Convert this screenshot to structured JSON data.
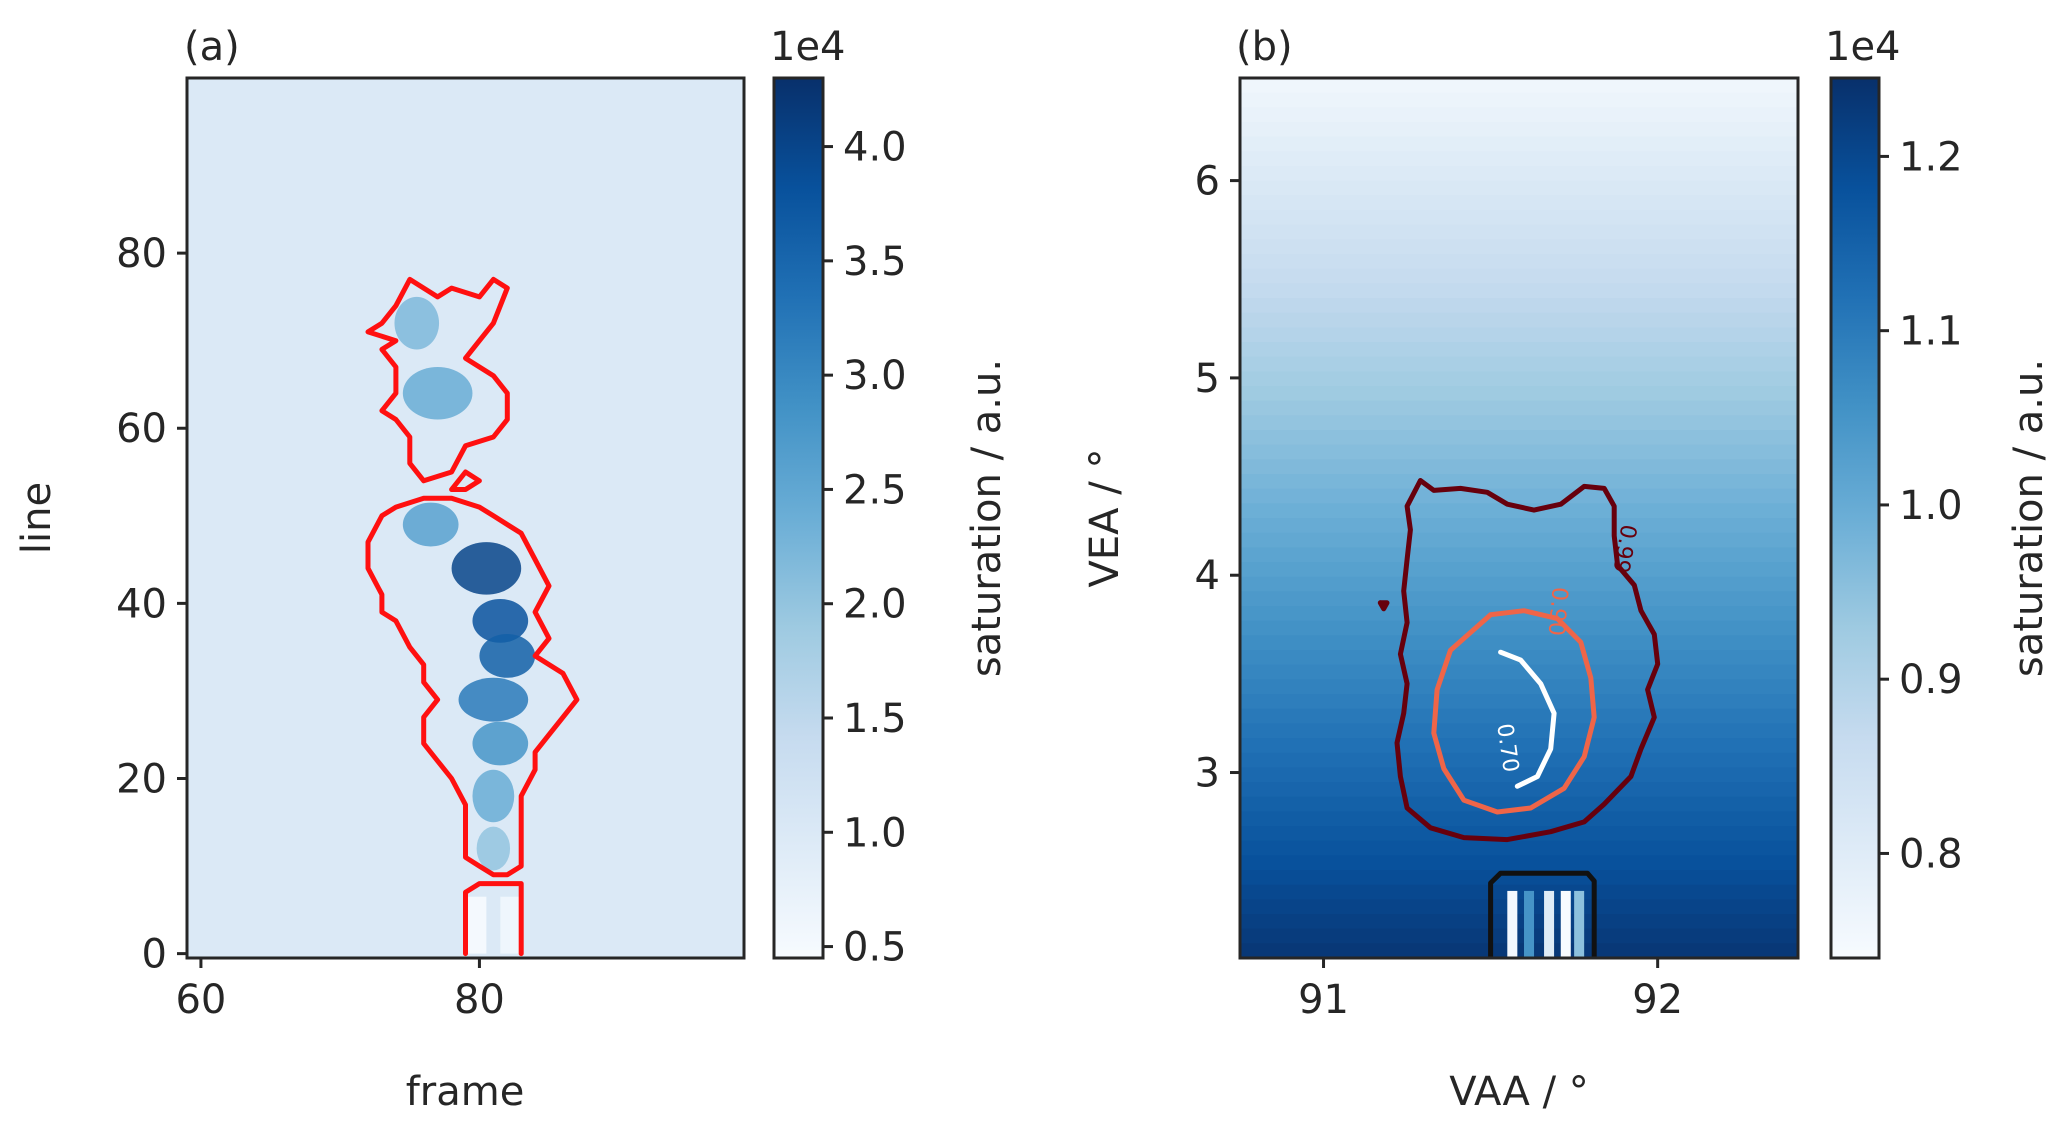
{
  "chart_data": [
    {
      "panel": "(a)",
      "type": "heatmap",
      "xlabel": "frame",
      "ylabel": "line",
      "xlim": [
        59,
        99
      ],
      "ylim": [
        -0.5,
        100
      ],
      "xticks": [
        60,
        80
      ],
      "yticks": [
        0,
        20,
        40,
        60,
        80
      ],
      "colormap": "Blues",
      "background_value": 10000,
      "colorbar": {
        "label": "saturation / a.u.",
        "exponent": "1e4",
        "range": [
          0.45,
          4.3
        ],
        "ticks": [
          0.5,
          1.0,
          1.5,
          2.0,
          2.5,
          3.0,
          3.5,
          4.0
        ],
        "tick_labels": [
          "0.5",
          "1.0",
          "1.5",
          "2.0",
          "2.5",
          "3.0",
          "3.5",
          "4.0"
        ]
      },
      "contours": [
        {
          "color": "#ff1010",
          "points": [
            [
              75,
              77
            ],
            [
              77,
              75
            ],
            [
              78,
              76
            ],
            [
              80,
              75
            ],
            [
              81,
              77
            ],
            [
              82,
              76
            ],
            [
              81,
              72
            ],
            [
              80,
              70
            ],
            [
              79,
              68
            ],
            [
              81,
              66
            ],
            [
              82,
              64
            ],
            [
              82,
              61
            ],
            [
              81,
              59
            ],
            [
              79,
              58
            ],
            [
              78,
              55
            ],
            [
              76,
              54
            ],
            [
              75,
              56
            ],
            [
              75,
              59
            ],
            [
              74,
              61
            ],
            [
              73,
              62
            ],
            [
              74,
              64
            ],
            [
              74,
              67
            ],
            [
              73,
              69
            ],
            [
              74,
              70
            ],
            [
              72,
              71
            ],
            [
              73,
              72
            ],
            [
              74,
              74
            ],
            [
              75,
              77
            ]
          ]
        },
        {
          "color": "#ff1010",
          "points": [
            [
              78,
              53
            ],
            [
              79,
              55
            ],
            [
              80,
              54
            ],
            [
              79,
              53
            ],
            [
              78,
              53
            ]
          ]
        },
        {
          "color": "#ff1010",
          "points": [
            [
              76,
              52
            ],
            [
              78,
              52
            ],
            [
              80,
              51
            ],
            [
              81,
              50
            ],
            [
              83,
              48
            ],
            [
              84,
              45
            ],
            [
              85,
              42
            ],
            [
              84,
              39
            ],
            [
              85,
              36
            ],
            [
              84,
              34
            ],
            [
              86,
              32
            ],
            [
              87,
              29
            ],
            [
              86,
              27
            ],
            [
              85,
              25
            ],
            [
              84,
              23
            ],
            [
              84,
              21
            ],
            [
              83,
              18
            ],
            [
              83,
              14
            ],
            [
              83,
              10
            ],
            [
              82,
              9
            ],
            [
              81,
              9
            ],
            [
              80,
              10
            ],
            [
              79,
              11
            ],
            [
              79,
              13
            ],
            [
              79,
              17
            ],
            [
              78,
              20
            ],
            [
              77,
              22
            ],
            [
              76,
              24
            ],
            [
              76,
              27
            ],
            [
              77,
              29
            ],
            [
              76,
              31
            ],
            [
              76,
              33
            ],
            [
              75,
              35
            ],
            [
              74,
              38
            ],
            [
              73,
              39
            ],
            [
              73,
              41
            ],
            [
              72,
              44
            ],
            [
              72,
              47
            ],
            [
              73,
              50
            ],
            [
              74,
              51
            ],
            [
              76,
              52
            ]
          ]
        },
        {
          "color": "#ff1010",
          "points": [
            [
              79,
              0
            ],
            [
              79,
              7
            ],
            [
              80,
              8
            ],
            [
              83,
              8
            ],
            [
              83,
              4
            ],
            [
              83,
              0
            ]
          ]
        }
      ],
      "blobs": [
        {
          "x": 75.5,
          "y": 72,
          "rx": 1.6,
          "ry": 3,
          "value": 22000
        },
        {
          "x": 77,
          "y": 64,
          "rx": 2.5,
          "ry": 3,
          "value": 24000
        },
        {
          "x": 76.5,
          "y": 49,
          "rx": 2,
          "ry": 2.5,
          "value": 26000
        },
        {
          "x": 80.5,
          "y": 44,
          "rx": 2.5,
          "ry": 3,
          "value": 40000
        },
        {
          "x": 81.5,
          "y": 38,
          "rx": 2,
          "ry": 2.5,
          "value": 38000
        },
        {
          "x": 82,
          "y": 34,
          "rx": 2,
          "ry": 2.5,
          "value": 36000
        },
        {
          "x": 81,
          "y": 29,
          "rx": 2.5,
          "ry": 2.5,
          "value": 32000
        },
        {
          "x": 81.5,
          "y": 24,
          "rx": 2,
          "ry": 2.5,
          "value": 28000
        },
        {
          "x": 81,
          "y": 18,
          "rx": 1.5,
          "ry": 3,
          "value": 24000
        },
        {
          "x": 81,
          "y": 12,
          "rx": 1.2,
          "ry": 2.5,
          "value": 20000
        }
      ],
      "white_columns": [
        {
          "x0": 79,
          "x1": 80.5,
          "y0": 0,
          "y1": 6.5,
          "value": 5000
        },
        {
          "x0": 81.5,
          "x1": 83,
          "y0": 0,
          "y1": 6.5,
          "value": 6000
        }
      ]
    },
    {
      "panel": "(b)",
      "type": "heatmap",
      "xlabel": "VAA / °",
      "ylabel": "VEA / °",
      "xlim": [
        90.75,
        92.42
      ],
      "ylim": [
        2.06,
        6.52
      ],
      "xticks": [
        91,
        92
      ],
      "yticks": [
        3,
        4,
        5,
        6
      ],
      "colormap": "Blues",
      "gradient": {
        "top_value": 7600,
        "bottom_value": 12300
      },
      "colorbar": {
        "label": "saturation / a.u.",
        "exponent": "1e4",
        "range": [
          0.74,
          1.245
        ],
        "ticks": [
          0.8,
          0.9,
          1.0,
          1.1,
          1.2
        ],
        "tick_labels": [
          "0.8",
          "0.9",
          "1.0",
          "1.1",
          "1.2"
        ]
      },
      "contours": [
        {
          "level_label": "0.99",
          "color": "#67000d",
          "label_at": [
            91.88,
            4.14
          ],
          "label_rotation": 100,
          "points": [
            [
              91.29,
              4.48
            ],
            [
              91.33,
              4.43
            ],
            [
              91.41,
              4.44
            ],
            [
              91.49,
              4.42
            ],
            [
              91.55,
              4.36
            ],
            [
              91.63,
              4.33
            ],
            [
              91.71,
              4.36
            ],
            [
              91.78,
              4.45
            ],
            [
              91.84,
              4.44
            ],
            [
              91.87,
              4.35
            ],
            [
              91.87,
              4.2
            ],
            [
              91.88,
              4.05
            ],
            [
              91.93,
              3.95
            ],
            [
              91.95,
              3.82
            ],
            [
              91.99,
              3.7
            ],
            [
              92.0,
              3.55
            ],
            [
              91.97,
              3.42
            ],
            [
              91.99,
              3.28
            ],
            [
              91.95,
              3.12
            ],
            [
              91.92,
              2.98
            ],
            [
              91.84,
              2.84
            ],
            [
              91.78,
              2.75
            ],
            [
              91.68,
              2.7
            ],
            [
              91.55,
              2.66
            ],
            [
              91.42,
              2.67
            ],
            [
              91.32,
              2.72
            ],
            [
              91.25,
              2.82
            ],
            [
              91.23,
              2.98
            ],
            [
              91.22,
              3.15
            ],
            [
              91.24,
              3.3
            ],
            [
              91.25,
              3.45
            ],
            [
              91.23,
              3.6
            ],
            [
              91.25,
              3.76
            ],
            [
              91.24,
              3.92
            ],
            [
              91.25,
              4.08
            ],
            [
              91.26,
              4.23
            ],
            [
              91.25,
              4.35
            ],
            [
              91.29,
              4.48
            ]
          ]
        },
        {
          "level_label": "0.90",
          "color": "#ef6548",
          "label_at": [
            91.68,
            3.82
          ],
          "label_rotation": 95,
          "points": [
            [
              91.5,
              3.8
            ],
            [
              91.6,
              3.82
            ],
            [
              91.7,
              3.78
            ],
            [
              91.77,
              3.66
            ],
            [
              91.8,
              3.48
            ],
            [
              91.81,
              3.28
            ],
            [
              91.78,
              3.08
            ],
            [
              91.72,
              2.92
            ],
            [
              91.62,
              2.82
            ],
            [
              91.52,
              2.8
            ],
            [
              91.42,
              2.86
            ],
            [
              91.36,
              3.02
            ],
            [
              91.33,
              3.2
            ],
            [
              91.34,
              3.42
            ],
            [
              91.38,
              3.62
            ],
            [
              91.5,
              3.8
            ]
          ]
        },
        {
          "level_label": "0.70",
          "color": "#ffffff",
          "label_at": [
            91.53,
            3.12
          ],
          "label_rotation": 82,
          "points": [
            [
              91.53,
              3.61
            ],
            [
              91.59,
              3.57
            ],
            [
              91.65,
              3.45
            ],
            [
              91.69,
              3.3
            ],
            [
              91.68,
              3.12
            ],
            [
              91.64,
              2.98
            ],
            [
              91.58,
              2.93
            ]
          ]
        },
        {
          "color": "#67000d",
          "points": [
            [
              91.17,
              3.86
            ],
            [
              91.18,
              3.83
            ],
            [
              91.19,
              3.86
            ],
            [
              91.17,
              3.86
            ]
          ]
        },
        {
          "color": "#111111",
          "points": [
            [
              91.5,
              2.06
            ],
            [
              91.5,
              2.44
            ],
            [
              91.53,
              2.49
            ],
            [
              91.79,
              2.49
            ],
            [
              91.81,
              2.45
            ],
            [
              91.81,
              2.06
            ]
          ]
        }
      ],
      "white_columns": [
        {
          "x0": 91.55,
          "x1": 91.58,
          "y0": 2.06,
          "y1": 2.4,
          "value": 7500
        },
        {
          "x0": 91.6,
          "x1": 91.63,
          "y0": 2.06,
          "y1": 2.4,
          "value": 10500
        },
        {
          "x0": 91.66,
          "x1": 91.69,
          "y0": 2.06,
          "y1": 2.4,
          "value": 8000
        },
        {
          "x0": 91.71,
          "x1": 91.74,
          "y0": 2.06,
          "y1": 2.4,
          "value": 7400
        },
        {
          "x0": 91.75,
          "x1": 91.78,
          "y0": 2.06,
          "y1": 2.4,
          "value": 9500
        }
      ]
    }
  ]
}
